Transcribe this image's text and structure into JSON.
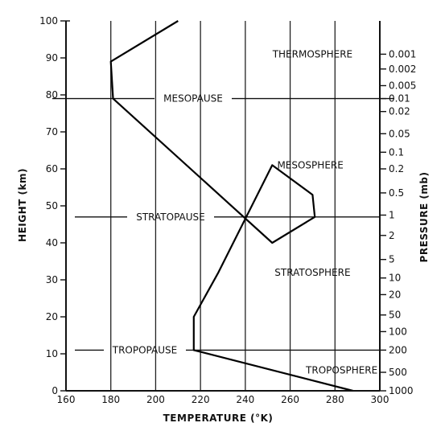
{
  "chart_data": {
    "type": "line",
    "title": "",
    "xlabel": "TEMPERATURE (°K)",
    "ylabel": "HEIGHT (km)",
    "y2label": "PRESSURE (mb)",
    "xlim": [
      160,
      300
    ],
    "ylim": [
      0,
      100
    ],
    "grid": true,
    "x_ticks": [
      "160",
      "180",
      "200",
      "220",
      "240",
      "260",
      "280",
      "300"
    ],
    "y_ticks": [
      "0",
      "10",
      "20",
      "30",
      "40",
      "50",
      "60",
      "70",
      "80",
      "90",
      "100"
    ],
    "pressure_ticks": [
      {
        "label": "0.001",
        "height": 91
      },
      {
        "label": "0.002",
        "height": 87
      },
      {
        "label": "0.005",
        "height": 82.5
      },
      {
        "label": "0.01",
        "height": 79
      },
      {
        "label": "0.02",
        "height": 75.5
      },
      {
        "label": "0.05",
        "height": 69.5
      },
      {
        "label": "0.1",
        "height": 64.5
      },
      {
        "label": "0.2",
        "height": 60
      },
      {
        "label": "0.5",
        "height": 53.5
      },
      {
        "label": "1",
        "height": 47.5
      },
      {
        "label": "2",
        "height": 42
      },
      {
        "label": "5",
        "height": 35.5
      },
      {
        "label": "10",
        "height": 30.5
      },
      {
        "label": "20",
        "height": 26
      },
      {
        "label": "50",
        "height": 20.5
      },
      {
        "label": "100",
        "height": 16
      },
      {
        "label": "200",
        "height": 11
      },
      {
        "label": "500",
        "height": 5
      },
      {
        "label": "1000",
        "height": 0
      }
    ],
    "series": [
      {
        "x": [
          288,
          217,
          217,
          228,
          252,
          270,
          271,
          252,
          181,
          180,
          210
        ],
        "y": [
          0,
          11,
          20,
          32,
          61,
          53,
          47,
          40,
          79,
          89,
          100
        ]
      }
    ],
    "boundaries": [
      {
        "label": "MESOPAUSE",
        "height": 79
      },
      {
        "label": "STRATOPAUSE",
        "height": 47
      },
      {
        "label": "TROPOPAUSE",
        "height": 11
      }
    ],
    "layers": [
      {
        "label": "THERMOSPHERE",
        "height": 91,
        "temperature": 270
      },
      {
        "label": "MESOSPHERE",
        "height": 61,
        "temperature": 269
      },
      {
        "label": "STRATOSPHERE",
        "height": 32,
        "temperature": 270
      },
      {
        "label": "TROPOSPHERE",
        "height": 5.5,
        "temperature": 283
      }
    ]
  }
}
